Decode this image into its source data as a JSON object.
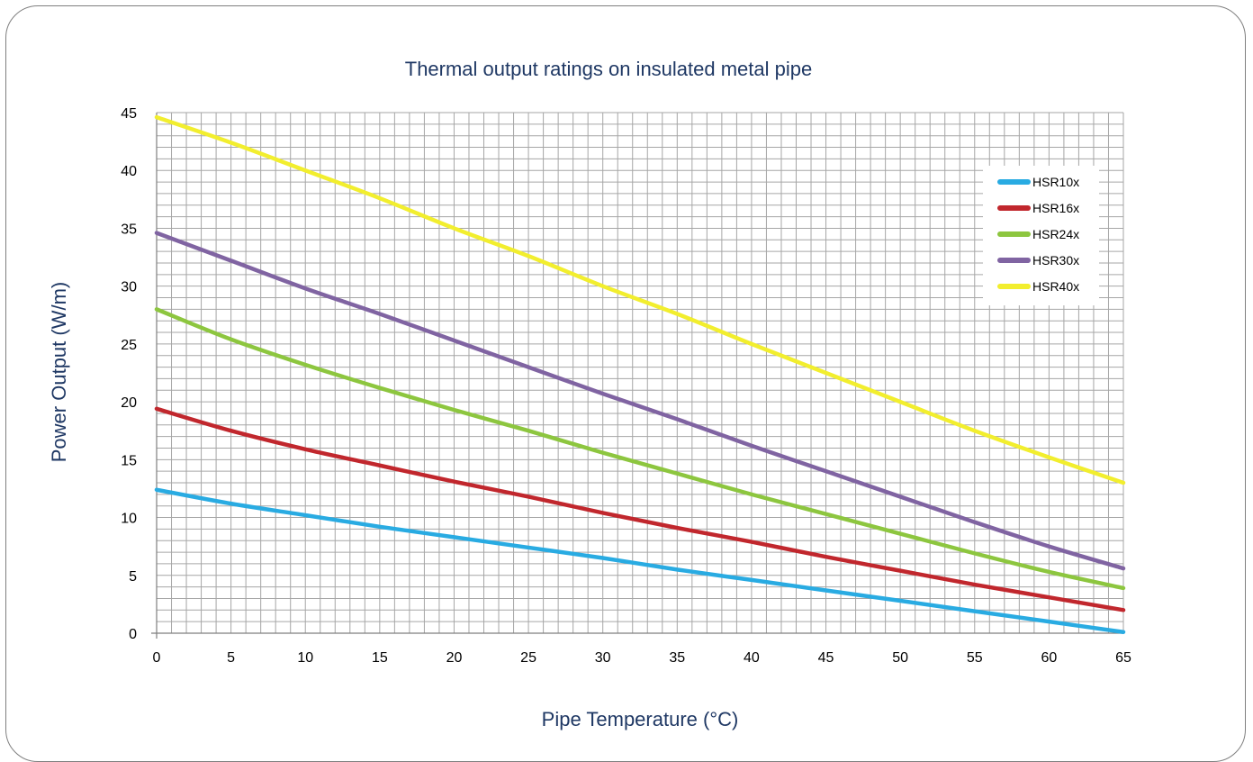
{
  "chart_data": {
    "type": "line",
    "title": "Thermal output ratings on insulated metal pipe",
    "xlabel": "Pipe Temperature (°C)",
    "ylabel": "Power Output (W/m)",
    "xlim": [
      0,
      65
    ],
    "ylim": [
      0,
      45
    ],
    "x_ticks": [
      "0",
      "5",
      "10",
      "15",
      "20",
      "25",
      "30",
      "35",
      "40",
      "45",
      "50",
      "55",
      "60",
      "65"
    ],
    "y_ticks": [
      "0",
      "5",
      "10",
      "15",
      "20",
      "25",
      "30",
      "35",
      "40",
      "45"
    ],
    "grid": true,
    "legend_position": "top-right",
    "x": [
      0,
      5,
      10,
      15,
      20,
      25,
      30,
      35,
      40,
      45,
      50,
      55,
      60,
      65
    ],
    "series": [
      {
        "name": "HSR10x",
        "color": "#29abe2",
        "values": [
          12.4,
          11.2,
          10.2,
          9.2,
          8.3,
          7.4,
          6.5,
          5.5,
          4.6,
          3.7,
          2.8,
          1.9,
          1.0,
          0.1
        ]
      },
      {
        "name": "HSR16x",
        "color": "#c1272d",
        "values": [
          19.4,
          17.5,
          15.9,
          14.5,
          13.1,
          11.8,
          10.4,
          9.1,
          7.9,
          6.6,
          5.4,
          4.2,
          3.1,
          2.0
        ]
      },
      {
        "name": "HSR24x",
        "color": "#8dc63f",
        "values": [
          28.0,
          25.4,
          23.2,
          21.2,
          19.3,
          17.5,
          15.6,
          13.8,
          12.0,
          10.3,
          8.6,
          6.9,
          5.3,
          3.9
        ]
      },
      {
        "name": "HSR30x",
        "color": "#8064a2",
        "values": [
          34.6,
          32.2,
          29.8,
          27.6,
          25.3,
          23.0,
          20.7,
          18.5,
          16.2,
          14.0,
          11.8,
          9.6,
          7.5,
          5.6
        ]
      },
      {
        "name": "HSR40x",
        "color": "#f2ee2e",
        "values": [
          44.6,
          42.4,
          40.0,
          37.6,
          35.0,
          32.6,
          30.0,
          27.6,
          25.0,
          22.5,
          20.0,
          17.5,
          15.2,
          13.0
        ]
      }
    ]
  }
}
